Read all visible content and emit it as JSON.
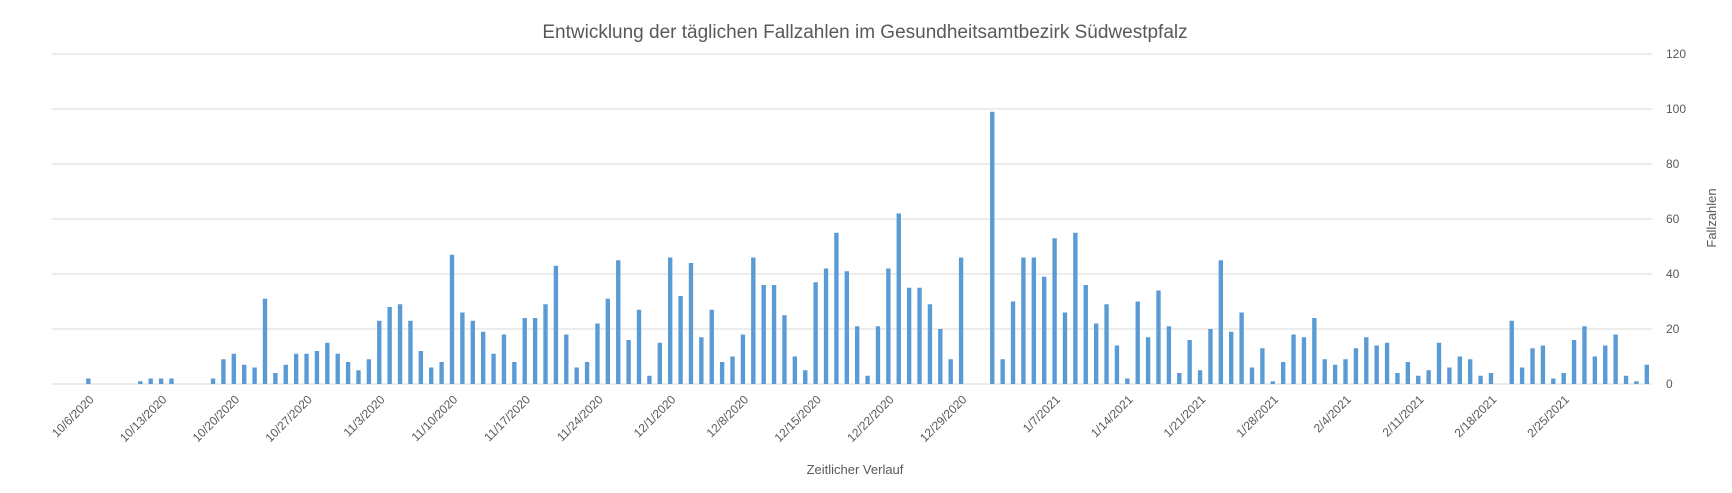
{
  "chart_data": {
    "type": "bar",
    "title": "Entwicklung der täglichen Fallzahlen im Gesundheitsamtbezirk Südwestpfalz",
    "xlabel": "Zeitlicher Verlauf",
    "ylabel": "Fallzahlen",
    "y_axis_side": "right",
    "ylim": [
      0,
      120
    ],
    "yticks": [
      0,
      20,
      40,
      60,
      80,
      100,
      120
    ],
    "grid": true,
    "legend": "none",
    "bar_color": "#5b9bd5",
    "x_start_date": "2020-10-03",
    "xtick_labels": [
      "10/6/2020",
      "10/13/2020",
      "10/20/2020",
      "10/27/2020",
      "11/3/2020",
      "11/10/2020",
      "11/17/2020",
      "11/24/2020",
      "12/1/2020",
      "12/8/2020",
      "12/15/2020",
      "12/22/2020",
      "12/29/2020",
      "1/7/2021",
      "1/14/2021",
      "1/21/2021",
      "1/28/2021",
      "2/4/2021",
      "2/11/2021",
      "2/18/2021",
      "2/25/2021"
    ],
    "xtick_indices": [
      3,
      10,
      17,
      24,
      31,
      38,
      45,
      52,
      59,
      66,
      73,
      80,
      87,
      96,
      103,
      110,
      117,
      124,
      131,
      138,
      145
    ],
    "values": [
      0,
      0,
      0,
      2,
      0,
      0,
      0,
      0,
      1,
      2,
      2,
      2,
      0,
      0,
      0,
      2,
      9,
      11,
      7,
      6,
      31,
      4,
      7,
      11,
      11,
      12,
      15,
      11,
      8,
      5,
      9,
      23,
      28,
      29,
      23,
      12,
      6,
      8,
      47,
      26,
      23,
      19,
      11,
      18,
      8,
      24,
      24,
      29,
      43,
      18,
      6,
      8,
      22,
      31,
      45,
      16,
      27,
      3,
      15,
      46,
      32,
      44,
      17,
      27,
      8,
      10,
      18,
      46,
      36,
      36,
      25,
      10,
      5,
      37,
      42,
      55,
      41,
      21,
      3,
      21,
      42,
      62,
      35,
      35,
      29,
      20,
      9,
      46,
      0,
      0,
      99,
      9,
      30,
      46,
      46,
      39,
      53,
      26,
      55,
      36,
      22,
      29,
      14,
      2,
      30,
      17,
      34,
      21,
      4,
      16,
      5,
      20,
      45,
      19,
      26,
      6,
      13,
      1,
      8,
      18,
      17,
      24,
      9,
      7,
      9,
      13,
      17,
      14,
      15,
      4,
      8,
      3,
      5,
      15,
      6,
      10,
      9,
      3,
      4,
      0,
      23,
      6,
      13,
      14,
      2,
      4,
      16,
      21,
      10,
      14,
      18,
      3,
      1,
      7
    ]
  }
}
